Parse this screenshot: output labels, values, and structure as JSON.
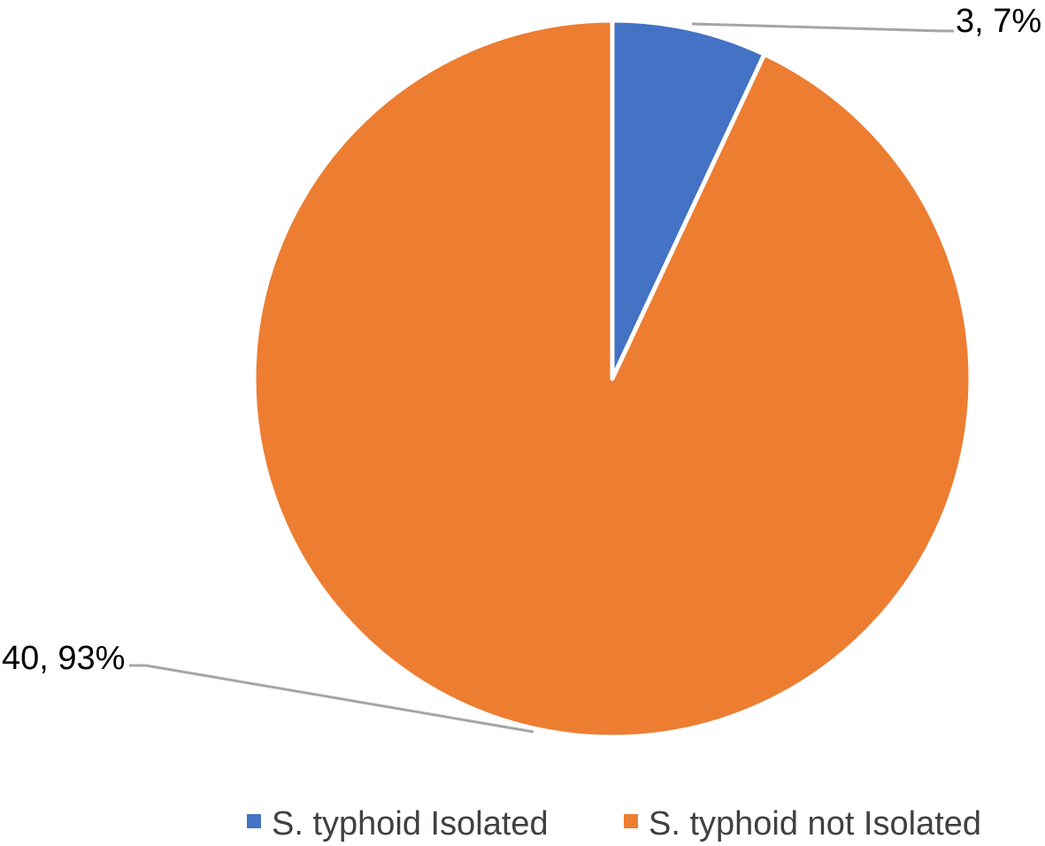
{
  "chart_data": {
    "type": "pie",
    "title": "",
    "slices": [
      {
        "name": "S. typhoid Isolated",
        "value": 3,
        "percent": "7%",
        "label": "3, 7%",
        "color": "#4472C4"
      },
      {
        "name": "S. typhoid not Isolated",
        "value": 40,
        "percent": "93%",
        "label": "40, 93%",
        "color": "#ED7D31"
      }
    ],
    "start_angle_deg": 0,
    "direction": "clockwise",
    "legend": {
      "position": "bottom",
      "items": [
        {
          "label": "S. typhoid Isolated",
          "color": "#4472C4"
        },
        {
          "label": "S. typhoid not Isolated",
          "color": "#ED7D31"
        }
      ]
    },
    "leader_line_color": "#A5A5A5"
  }
}
